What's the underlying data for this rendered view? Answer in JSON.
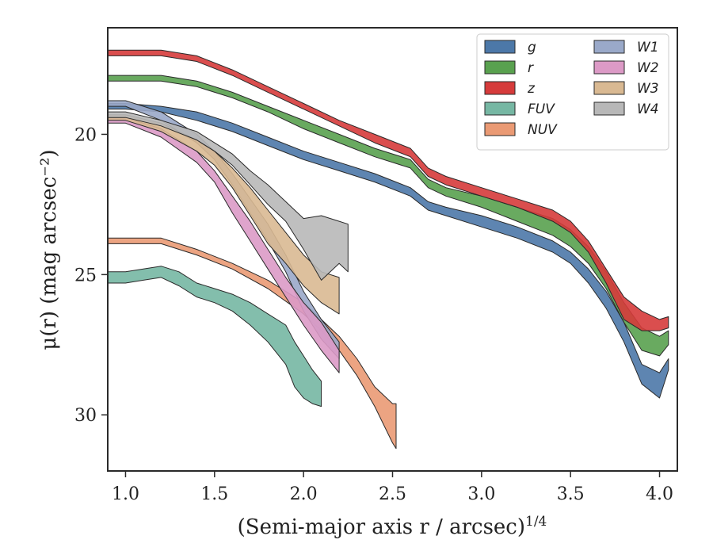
{
  "chart_data": {
    "type": "area",
    "xlabel": "(Semi-major axis r / arcsec)",
    "xlabel_exponent": "1/4",
    "ylabel": "μ(r) (mag arcsec⁻²)",
    "xlim": [
      0.9,
      4.1
    ],
    "ylim": [
      32.0,
      16.2
    ],
    "y_inverted": true,
    "grid": false,
    "legend_position": "top-right",
    "legend_columns": 2,
    "x_ticks": [
      "1.0",
      "1.5",
      "2.0",
      "2.5",
      "3.0",
      "3.5",
      "4.0"
    ],
    "y_ticks": [
      "20",
      "25",
      "30"
    ],
    "series": [
      {
        "name": "g",
        "color": "#4c78a8",
        "x": [
          0.9,
          1.0,
          1.2,
          1.4,
          1.6,
          1.8,
          2.0,
          2.2,
          2.4,
          2.6,
          2.7,
          2.8,
          3.0,
          3.2,
          3.4,
          3.5,
          3.6,
          3.7,
          3.8,
          3.9,
          4.0,
          4.05
        ],
        "lower": [
          18.9,
          18.9,
          19.0,
          19.2,
          19.6,
          20.1,
          20.6,
          21.0,
          21.4,
          21.9,
          22.4,
          22.6,
          22.9,
          23.3,
          23.8,
          24.2,
          24.8,
          25.6,
          26.7,
          28.2,
          28.5,
          28.0
        ],
        "upper": [
          19.1,
          19.1,
          19.2,
          19.5,
          19.9,
          20.4,
          20.9,
          21.3,
          21.7,
          22.2,
          22.7,
          22.9,
          23.3,
          23.7,
          24.2,
          24.6,
          25.3,
          26.2,
          27.4,
          28.9,
          29.4,
          28.4
        ]
      },
      {
        "name": "r",
        "color": "#59a14f",
        "x": [
          0.9,
          1.0,
          1.2,
          1.4,
          1.6,
          1.8,
          2.0,
          2.2,
          2.4,
          2.6,
          2.7,
          2.8,
          3.0,
          3.2,
          3.4,
          3.5,
          3.6,
          3.7,
          3.8,
          3.9,
          4.0,
          4.05
        ],
        "lower": [
          17.9,
          17.9,
          17.9,
          18.1,
          18.5,
          19.0,
          19.5,
          20.0,
          20.5,
          20.9,
          21.6,
          21.9,
          22.2,
          22.6,
          23.0,
          23.4,
          24.0,
          24.9,
          26.0,
          26.9,
          27.2,
          27.0
        ],
        "upper": [
          18.1,
          18.1,
          18.1,
          18.3,
          18.7,
          19.2,
          19.8,
          20.3,
          20.8,
          21.2,
          21.9,
          22.2,
          22.6,
          23.1,
          23.6,
          24.0,
          24.6,
          25.5,
          26.7,
          27.7,
          27.9,
          27.5
        ]
      },
      {
        "name": "z",
        "color": "#d63b3b",
        "x": [
          0.9,
          1.0,
          1.2,
          1.4,
          1.6,
          1.8,
          2.0,
          2.2,
          2.4,
          2.6,
          2.7,
          2.8,
          3.0,
          3.2,
          3.4,
          3.5,
          3.6,
          3.7,
          3.8,
          3.9,
          4.0,
          4.05
        ],
        "lower": [
          17.0,
          17.0,
          17.0,
          17.2,
          17.7,
          18.3,
          18.9,
          19.5,
          20.0,
          20.5,
          21.2,
          21.5,
          21.9,
          22.3,
          22.7,
          23.1,
          23.8,
          24.8,
          25.8,
          26.3,
          26.6,
          26.5
        ],
        "upper": [
          17.2,
          17.2,
          17.2,
          17.4,
          17.9,
          18.5,
          19.1,
          19.7,
          20.3,
          20.8,
          21.5,
          21.8,
          22.2,
          22.6,
          23.1,
          23.5,
          24.2,
          25.3,
          26.6,
          27.0,
          27.0,
          26.9
        ]
      },
      {
        "name": "FUV",
        "color": "#76b7a3",
        "x": [
          0.9,
          1.0,
          1.1,
          1.2,
          1.3,
          1.4,
          1.5,
          1.6,
          1.7,
          1.8,
          1.9,
          1.95,
          2.0,
          2.05,
          2.1
        ],
        "lower": [
          24.9,
          24.9,
          24.8,
          24.7,
          24.9,
          25.3,
          25.5,
          25.7,
          26.0,
          26.4,
          26.8,
          27.4,
          27.9,
          28.4,
          28.8
        ],
        "upper": [
          25.3,
          25.3,
          25.2,
          25.1,
          25.4,
          25.8,
          26.0,
          26.3,
          26.8,
          27.4,
          28.2,
          29.0,
          29.4,
          29.6,
          29.7
        ]
      },
      {
        "name": "NUV",
        "color": "#ea9a74",
        "x": [
          0.9,
          1.0,
          1.2,
          1.4,
          1.6,
          1.8,
          2.0,
          2.1,
          2.2,
          2.3,
          2.4,
          2.5,
          2.52
        ],
        "lower": [
          23.7,
          23.7,
          23.7,
          24.1,
          24.6,
          25.2,
          26.0,
          26.6,
          27.2,
          28.0,
          29.0,
          29.6,
          29.6
        ],
        "upper": [
          23.9,
          23.9,
          23.9,
          24.3,
          24.8,
          25.5,
          26.4,
          27.0,
          27.7,
          28.6,
          29.7,
          31.0,
          31.2
        ]
      },
      {
        "name": "W1",
        "color": "#9aa9c9",
        "x": [
          0.9,
          1.0,
          1.2,
          1.4,
          1.5,
          1.6,
          1.7,
          1.8,
          1.9,
          2.0,
          2.1,
          2.2
        ],
        "lower": [
          18.8,
          18.8,
          19.2,
          20.0,
          20.6,
          21.4,
          22.3,
          23.2,
          24.3,
          25.6,
          26.6,
          27.4
        ],
        "upper": [
          19.0,
          19.0,
          19.5,
          20.3,
          20.9,
          21.8,
          22.8,
          23.8,
          24.9,
          26.3,
          27.3,
          28.0
        ]
      },
      {
        "name": "W2",
        "color": "#dc9ac6",
        "x": [
          0.9,
          1.0,
          1.2,
          1.4,
          1.5,
          1.6,
          1.7,
          1.8,
          1.9,
          2.0,
          2.1,
          2.2
        ],
        "lower": [
          19.4,
          19.4,
          19.8,
          20.6,
          21.3,
          22.2,
          23.1,
          24.1,
          25.1,
          26.0,
          26.7,
          27.7
        ],
        "upper": [
          19.6,
          19.6,
          20.1,
          21.0,
          21.7,
          22.8,
          23.8,
          24.8,
          25.8,
          26.8,
          27.7,
          28.5
        ]
      },
      {
        "name": "W3",
        "color": "#d9b992",
        "x": [
          0.9,
          1.0,
          1.2,
          1.4,
          1.5,
          1.6,
          1.7,
          1.8,
          1.9,
          2.0,
          2.1,
          2.2
        ],
        "lower": [
          19.3,
          19.3,
          19.6,
          20.2,
          20.6,
          21.2,
          21.9,
          22.7,
          23.5,
          24.3,
          24.9,
          25.1
        ],
        "upper": [
          19.5,
          19.5,
          19.9,
          20.6,
          21.1,
          21.9,
          22.9,
          23.9,
          24.6,
          25.4,
          26.0,
          26.4
        ]
      },
      {
        "name": "W4",
        "color": "#b8b8b8",
        "x": [
          0.9,
          1.0,
          1.2,
          1.4,
          1.5,
          1.6,
          1.7,
          1.8,
          1.9,
          2.0,
          2.1,
          2.2,
          2.25
        ],
        "lower": [
          19.2,
          19.2,
          19.5,
          19.9,
          20.3,
          20.7,
          21.3,
          21.8,
          22.4,
          23.0,
          22.9,
          23.1,
          23.2
        ],
        "upper": [
          19.4,
          19.4,
          19.7,
          20.2,
          20.6,
          21.1,
          21.8,
          22.5,
          23.1,
          24.1,
          25.2,
          24.6,
          24.9
        ]
      }
    ]
  }
}
